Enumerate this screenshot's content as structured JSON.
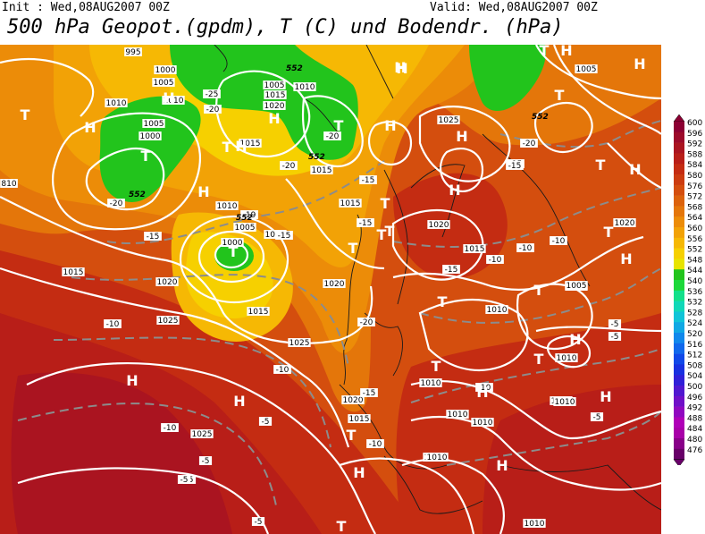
{
  "header": {
    "init": "Init : Wed,08AUG2007 00Z",
    "valid": "Valid: Wed,08AUG2007 00Z",
    "title": "500 hPa Geopot.(gpdm), T (C) und Bodendr. (hPa)"
  },
  "legend": {
    "levels": [
      "600",
      "596",
      "592",
      "588",
      "584",
      "580",
      "576",
      "572",
      "568",
      "564",
      "560",
      "556",
      "552",
      "548",
      "544",
      "540",
      "536",
      "532",
      "528",
      "524",
      "520",
      "516",
      "512",
      "508",
      "504",
      "500",
      "496",
      "492",
      "488",
      "484",
      "480",
      "476"
    ],
    "colors": [
      "#8c0033",
      "#9c0a2a",
      "#aa1420",
      "#b81e18",
      "#c42c12",
      "#cc3c10",
      "#d44e0e",
      "#dc620c",
      "#e4760a",
      "#ec8c08",
      "#f2a206",
      "#f6b804",
      "#f6d000",
      "#e8e400",
      "#22c41c",
      "#1cd83a",
      "#12e08a",
      "#10d8b8",
      "#10c4d8",
      "#10a8e4",
      "#1088ec",
      "#1068ec",
      "#1048e8",
      "#1830e0",
      "#3020d8",
      "#5018d0",
      "#7010c8",
      "#9008c0",
      "#b000b8",
      "#a800a8",
      "#880088",
      "#680068"
    ]
  },
  "pressure_labels": [
    {
      "text": "995"
    },
    {
      "text": "1000"
    },
    {
      "text": "1005"
    },
    {
      "text": "1010"
    },
    {
      "text": "1005"
    },
    {
      "text": "1000"
    },
    {
      "text": "1010"
    },
    {
      "text": "1005"
    },
    {
      "text": "1015"
    },
    {
      "text": "1020"
    },
    {
      "text": "1010"
    },
    {
      "text": "1015"
    },
    {
      "text": "1010"
    },
    {
      "text": "1000"
    },
    {
      "text": "1005"
    },
    {
      "text": "1010"
    },
    {
      "text": "1015"
    },
    {
      "text": "1015"
    },
    {
      "text": "1020"
    },
    {
      "text": "1015"
    },
    {
      "text": "1020"
    },
    {
      "text": "1025"
    },
    {
      "text": "1025"
    },
    {
      "text": "1020"
    },
    {
      "text": "1015"
    },
    {
      "text": "1025"
    },
    {
      "text": "1015"
    },
    {
      "text": "1010"
    },
    {
      "text": "1010"
    },
    {
      "text": "1005"
    },
    {
      "text": "1025"
    },
    {
      "text": "1020"
    },
    {
      "text": "1015"
    },
    {
      "text": "1010"
    },
    {
      "text": "1005"
    },
    {
      "text": "1010"
    },
    {
      "text": "1010"
    },
    {
      "text": "1010"
    },
    {
      "text": "1010"
    },
    {
      "text": "1020"
    },
    {
      "text": "1005"
    },
    {
      "text": "1005"
    },
    {
      "text": "1010"
    },
    {
      "text": "1010"
    },
    {
      "text": "810"
    }
  ],
  "temp_labels": [
    {
      "text": "-25"
    },
    {
      "text": "-20"
    },
    {
      "text": "-20"
    },
    {
      "text": "-20"
    },
    {
      "text": "-20"
    },
    {
      "text": "-15"
    },
    {
      "text": "-15"
    },
    {
      "text": "-15"
    },
    {
      "text": "-15"
    },
    {
      "text": "-15"
    },
    {
      "text": "-15"
    },
    {
      "text": "-10"
    },
    {
      "text": "-10"
    },
    {
      "text": "-10"
    },
    {
      "text": "-10"
    },
    {
      "text": "-10"
    },
    {
      "text": "-10"
    },
    {
      "text": "-5"
    },
    {
      "text": "-5"
    },
    {
      "text": "-5"
    },
    {
      "text": "-5"
    },
    {
      "text": "-5"
    },
    {
      "text": "-5"
    },
    {
      "text": "-20"
    },
    {
      "text": "-19"
    },
    {
      "text": "-15"
    },
    {
      "text": "-20"
    },
    {
      "text": "-10"
    },
    {
      "text": "-10"
    },
    {
      "text": "-15"
    },
    {
      "text": "-5"
    },
    {
      "text": "-5"
    }
  ],
  "geo_labels": [
    {
      "text": "552"
    },
    {
      "text": "552"
    },
    {
      "text": "552"
    },
    {
      "text": "552"
    },
    {
      "text": "552"
    }
  ],
  "highs_lows": [
    {
      "text": "H"
    },
    {
      "text": "H"
    },
    {
      "text": "H"
    },
    {
      "text": "H"
    },
    {
      "text": "H"
    },
    {
      "text": "H"
    },
    {
      "text": "H"
    },
    {
      "text": "H"
    },
    {
      "text": "H"
    },
    {
      "text": "H"
    },
    {
      "text": "H"
    },
    {
      "text": "H"
    },
    {
      "text": "H"
    },
    {
      "text": "H"
    },
    {
      "text": "H"
    },
    {
      "text": "H"
    },
    {
      "text": "H"
    },
    {
      "text": "H"
    },
    {
      "text": "H"
    },
    {
      "text": "H"
    },
    {
      "text": "H"
    },
    {
      "text": "T"
    },
    {
      "text": "T"
    },
    {
      "text": "T"
    },
    {
      "text": "T"
    },
    {
      "text": "T"
    },
    {
      "text": "T"
    },
    {
      "text": "T"
    },
    {
      "text": "T"
    },
    {
      "text": "T"
    },
    {
      "text": "T"
    },
    {
      "text": "T"
    },
    {
      "text": "T"
    },
    {
      "text": "T"
    },
    {
      "text": "T"
    },
    {
      "text": "T"
    },
    {
      "text": "T"
    },
    {
      "text": "T"
    },
    {
      "text": "T"
    },
    {
      "text": "T"
    }
  ]
}
